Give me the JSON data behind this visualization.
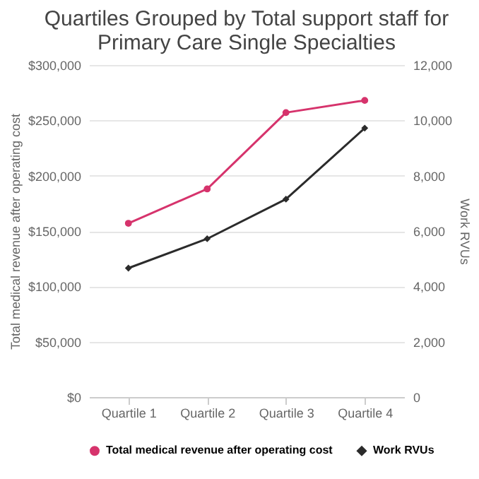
{
  "chart_data": {
    "type": "line",
    "title": "Quartiles Grouped by Total support staff for Primary Care Single Specialties",
    "categories": [
      "Quartile 1",
      "Quartile 2",
      "Quartile 3",
      "Quartile 4"
    ],
    "ylabel": "Total medical revenue after operating cost",
    "y2label": "Work RVUs",
    "series": [
      {
        "name": "Total medical revenue after operating cost",
        "color": "#d6336c",
        "marker": "circle",
        "values": [
          157000,
          188000,
          257000,
          268000
        ]
      },
      {
        "name": "Work RVUs",
        "color": "#2b2b2b",
        "marker": "diamond",
        "axis": "y2",
        "values": [
          4660,
          5720,
          7150,
          9720
        ]
      }
    ],
    "ylim": [
      0,
      300000
    ],
    "yticks": [
      {
        "value": 0,
        "label": "$0"
      },
      {
        "value": 50000,
        "label": "$50,000"
      },
      {
        "value": 100000,
        "label": "$100,000"
      },
      {
        "value": 150000,
        "label": "$150,000"
      },
      {
        "value": 200000,
        "label": "$200,000"
      },
      {
        "value": 250000,
        "label": "$250,000"
      },
      {
        "value": 300000,
        "label": "$300,000"
      }
    ],
    "y2lim": [
      0,
      12000
    ],
    "y2ticks": [
      0,
      {
        "value": 2000,
        "label": "2,000"
      },
      {
        "value": 4000,
        "label": "4,000"
      },
      {
        "value": 6000,
        "label": "6,000"
      },
      {
        "value": 8000,
        "label": "8,000"
      },
      {
        "value": 10000,
        "label": "10,000"
      },
      {
        "value": 12000,
        "label": "12,000"
      }
    ],
    "grid": "y",
    "legend": "bottom",
    "line_style": "solid"
  }
}
